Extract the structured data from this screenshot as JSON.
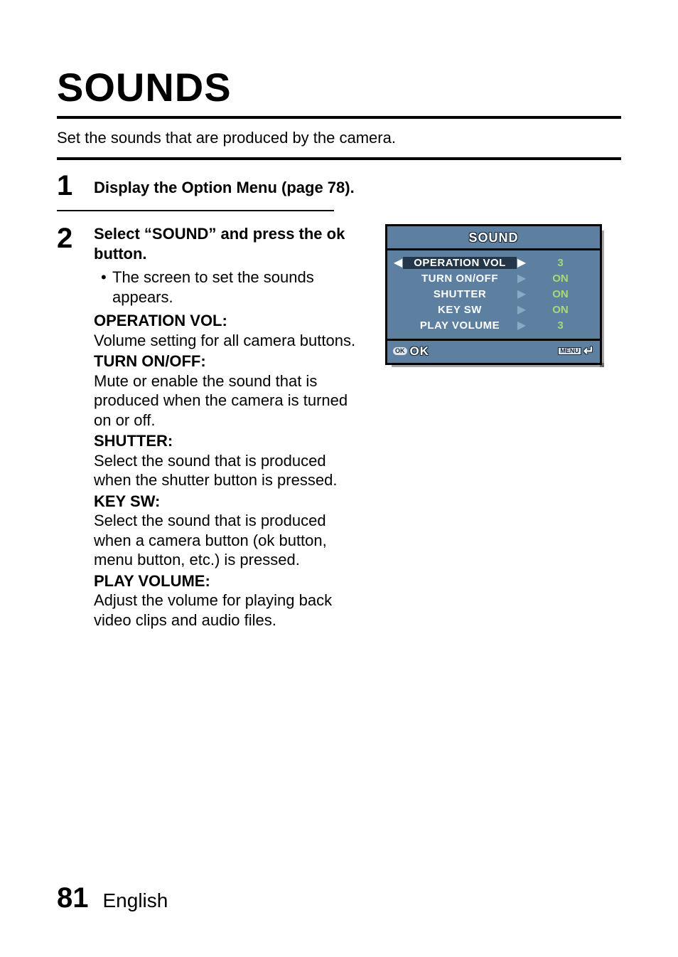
{
  "title": "SOUNDS",
  "intro": "Set the sounds that are produced by the camera.",
  "step1": {
    "num": "1",
    "text": "Display the Option Menu (page 78)."
  },
  "step2": {
    "num": "2",
    "heading": "Select “SOUND” and press the ok button.",
    "bullet": "The screen to set the sounds appears.",
    "defs": [
      {
        "title": "OPERATION VOL:",
        "body": "Volume setting for all camera buttons."
      },
      {
        "title": "TURN ON/OFF:",
        "body": "Mute or enable the sound that is produced when the camera is turned on or off."
      },
      {
        "title": "SHUTTER:",
        "body": "Select the sound that is produced when the shutter button is pressed."
      },
      {
        "title": "KEY SW:",
        "body": "Select the sound that is produced when a camera button (ok button, menu button, etc.) is pressed."
      },
      {
        "title": "PLAY VOLUME:",
        "body": "Adjust the volume for playing back video clips and audio files."
      }
    ]
  },
  "footer": {
    "page": "81",
    "lang": "English"
  },
  "screen": {
    "title": "SOUND",
    "bg_color": "#5d7fa0",
    "selected_bg": "#23364a",
    "value_color": "#a7d977",
    "label_color": "#ffffff",
    "rows": [
      {
        "label": "OPERATION VOL",
        "value": "3",
        "selected": true
      },
      {
        "label": "TURN ON/OFF",
        "value": "ON",
        "selected": false
      },
      {
        "label": "SHUTTER",
        "value": "ON",
        "selected": false
      },
      {
        "label": "KEY SW",
        "value": "ON",
        "selected": false
      },
      {
        "label": "PLAY VOLUME",
        "value": "3",
        "selected": false
      }
    ],
    "ok_pill": "OK",
    "ok_text": "OK",
    "menu_pill": "MENU",
    "return_glyph": "↵"
  }
}
